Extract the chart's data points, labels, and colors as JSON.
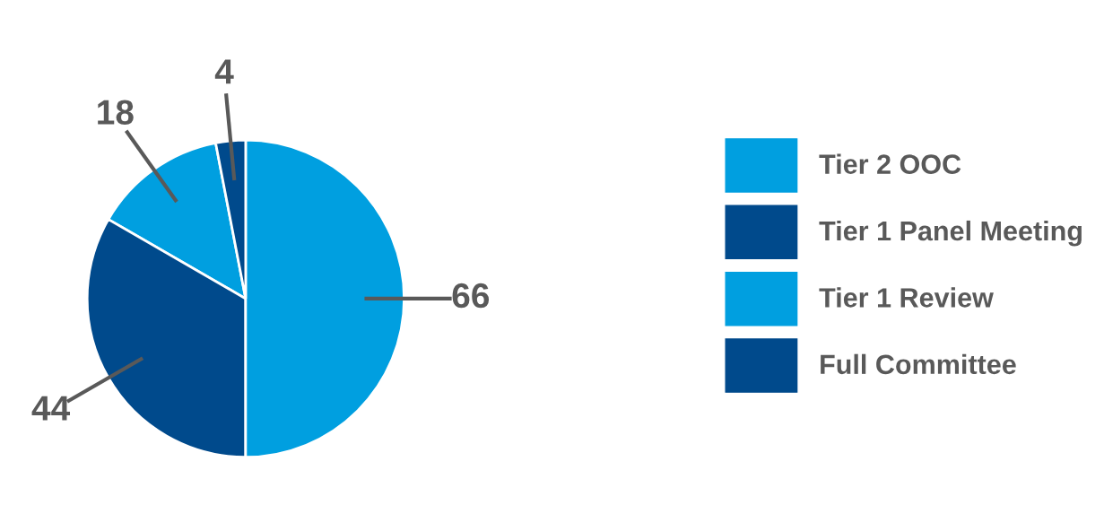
{
  "chart_data": {
    "type": "pie",
    "categories": [
      "Tier 2 OOC",
      "Tier 1 Panel Meeting",
      "Tier 1 Review",
      "Full Committee"
    ],
    "values": [
      18,
      44,
      66,
      4
    ],
    "colors": [
      "#009fe0",
      "#004a8c",
      "#009fe0",
      "#004a8c"
    ],
    "data_labels": true,
    "legend": "right"
  }
}
